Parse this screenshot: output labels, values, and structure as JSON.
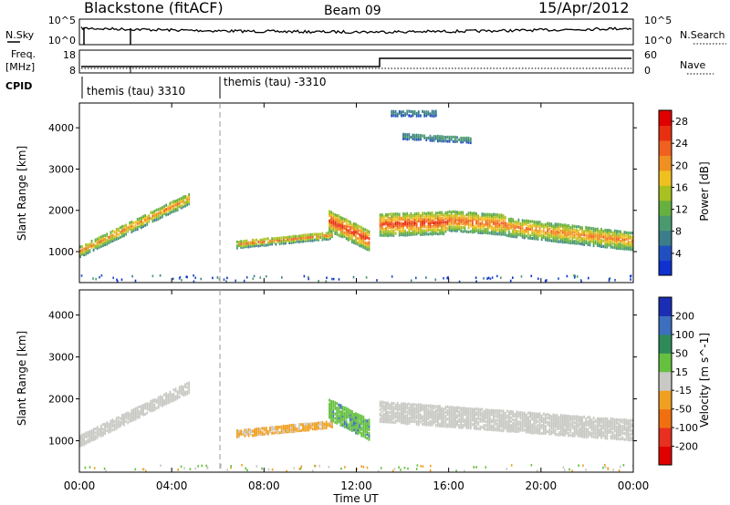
{
  "header": {
    "station": "Blackstone (fitACF)",
    "beam": "Beam 09",
    "date": "15/Apr/2012"
  },
  "noise_panel": {
    "left_label": "N.Sky",
    "left_ticks": [
      "10^5",
      "10^0"
    ],
    "right_label": "N.Search",
    "right_ticks": [
      "10^5",
      "10^0"
    ]
  },
  "freq_panel": {
    "left_label_line1": "Freq.",
    "left_label_line2": "[MHz]",
    "left_ticks": [
      "18",
      "8"
    ],
    "right_label": "Nave",
    "right_ticks": [
      "60",
      "0"
    ]
  },
  "cpid_panel": {
    "label": "CPID",
    "modes": [
      {
        "start": "00:00",
        "text": "themis (tau) 3310"
      },
      {
        "start": "06:00",
        "text": "themis (tau) -3310"
      }
    ]
  },
  "xaxis": {
    "label": "Time UT",
    "ticks": [
      "00:00",
      "04:00",
      "08:00",
      "12:00",
      "16:00",
      "20:00",
      "00:00"
    ]
  },
  "colors": {
    "power_scale": [
      "#1030d0",
      "#2050c0",
      "#3c7d8c",
      "#4a9a70",
      "#66b040",
      "#a8c020",
      "#f0c020",
      "#f09020",
      "#f06020",
      "#e83010",
      "#e00000"
    ],
    "velocity_scale": [
      "#1a2eb4",
      "#3d6fc0",
      "#2f8a5a",
      "#66c040",
      "#c8c8c4",
      "#f0a020",
      "#f07010",
      "#e83020",
      "#e00000"
    ]
  },
  "chart_data": [
    {
      "type": "heatmap",
      "title": "",
      "xlabel": "",
      "ylabel": "Slant Range [km]",
      "x_unit": "hours UT",
      "xlim": [
        0,
        24
      ],
      "ylim": [
        250,
        4600
      ],
      "yticks": [
        "1000",
        "2000",
        "3000",
        "4000"
      ],
      "colorbar": {
        "label": "Power [dB]",
        "ticks": [
          "4",
          "8",
          "12",
          "16",
          "20",
          "24",
          "28"
        ],
        "range": [
          0,
          30
        ]
      },
      "echo_regions": [
        {
          "t0": 0.0,
          "t1": 4.8,
          "r_start": 1050,
          "r_end": 2350,
          "width": 280,
          "peak": 22
        },
        {
          "t0": 6.8,
          "t1": 11.0,
          "r_start": 1220,
          "r_end": 1450,
          "width": 180,
          "peak": 22
        },
        {
          "t0": 10.8,
          "t1": 12.6,
          "r_start": 1800,
          "r_end": 1300,
          "width": 500,
          "peak": 28
        },
        {
          "t0": 13.0,
          "t1": 16.0,
          "r_start": 1700,
          "r_end": 1750,
          "width": 550,
          "peak": 27
        },
        {
          "t0": 16.0,
          "t1": 18.5,
          "r_start": 1800,
          "r_end": 1700,
          "width": 500,
          "peak": 25
        },
        {
          "t0": 18.5,
          "t1": 24.0,
          "r_start": 1650,
          "r_end": 1300,
          "width": 450,
          "peak": 23
        },
        {
          "t0": 14.0,
          "t1": 17.0,
          "r_start": 3850,
          "r_end": 3750,
          "width": 150,
          "peak": 10
        },
        {
          "t0": 13.5,
          "t1": 15.5,
          "r_start": 4400,
          "r_end": 4400,
          "width": 150,
          "peak": 8
        }
      ]
    },
    {
      "type": "heatmap",
      "title": "",
      "xlabel": "Time UT",
      "ylabel": "Slant Range [km]",
      "x_unit": "hours UT",
      "xlim": [
        0,
        24
      ],
      "ylim": [
        250,
        4600
      ],
      "yticks": [
        "1000",
        "2000",
        "3000",
        "4000"
      ],
      "colorbar": {
        "label": "Velocity [m s^-1]",
        "ticks": [
          "200",
          "100",
          "50",
          "15",
          "-15",
          "-50",
          "-100",
          "-200"
        ],
        "range": [
          -250,
          250
        ]
      },
      "echo_regions": [
        {
          "t0": 0.0,
          "t1": 4.8,
          "r_start": 1050,
          "r_end": 2350,
          "width": 280,
          "velocity": 0
        },
        {
          "t0": 6.8,
          "t1": 11.0,
          "r_start": 1220,
          "r_end": 1450,
          "width": 180,
          "velocity": -40
        },
        {
          "t0": 10.8,
          "t1": 12.6,
          "r_start": 1800,
          "r_end": 1300,
          "width": 500,
          "velocity": 60
        },
        {
          "t0": 13.0,
          "t1": 24.0,
          "r_start": 1750,
          "r_end": 1300,
          "width": 500,
          "velocity": 0
        }
      ]
    }
  ]
}
